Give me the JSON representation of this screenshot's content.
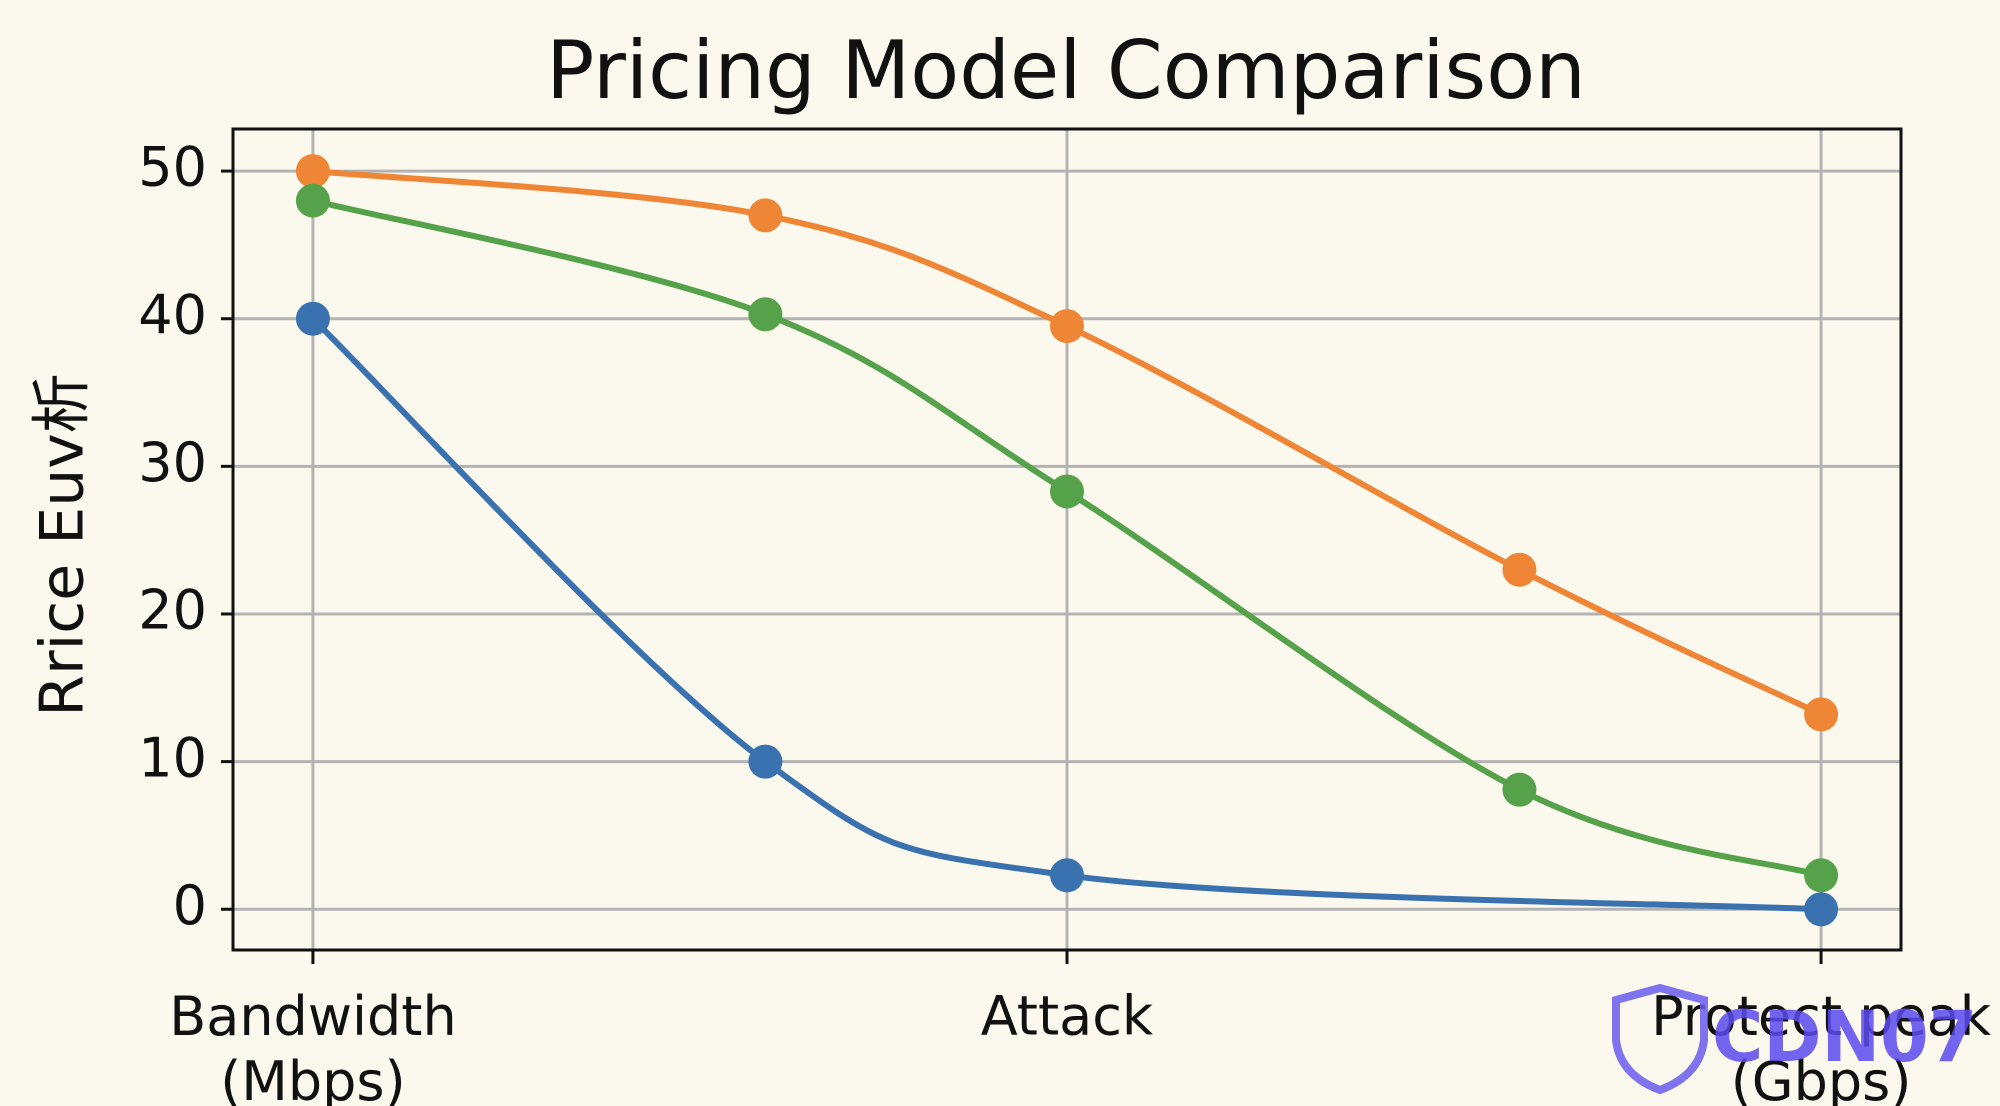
{
  "chart_data": {
    "type": "line",
    "title": "Pricing Model Comparison",
    "ylabel": "Rrice Euv析",
    "xlim": [
      -0.53,
      10.53
    ],
    "ylim": [
      -2.76,
      52.85
    ],
    "xticks": [
      {
        "value": 0,
        "label": "Bandwidth\n(Mbps)"
      },
      {
        "value": 5,
        "label": "Attack"
      },
      {
        "value": 10,
        "label": "Protect peak\n(Gbps)"
      }
    ],
    "yticks": [
      0,
      10,
      20,
      30,
      40,
      50
    ],
    "grid": true,
    "series": [
      {
        "color": "#3a72b0",
        "x": [
          0,
          3,
          5,
          10
        ],
        "values": [
          40,
          10,
          2.3,
          0
        ]
      },
      {
        "color": "#ee8636",
        "x": [
          0,
          3,
          5,
          8,
          10
        ],
        "values": [
          50,
          47,
          39.5,
          23,
          13.2
        ]
      },
      {
        "color": "#55a24a",
        "x": [
          0,
          3,
          5,
          8,
          10
        ],
        "values": [
          48,
          40.3,
          28.3,
          8.1,
          2.3
        ]
      }
    ],
    "watermark": "CDN07"
  }
}
